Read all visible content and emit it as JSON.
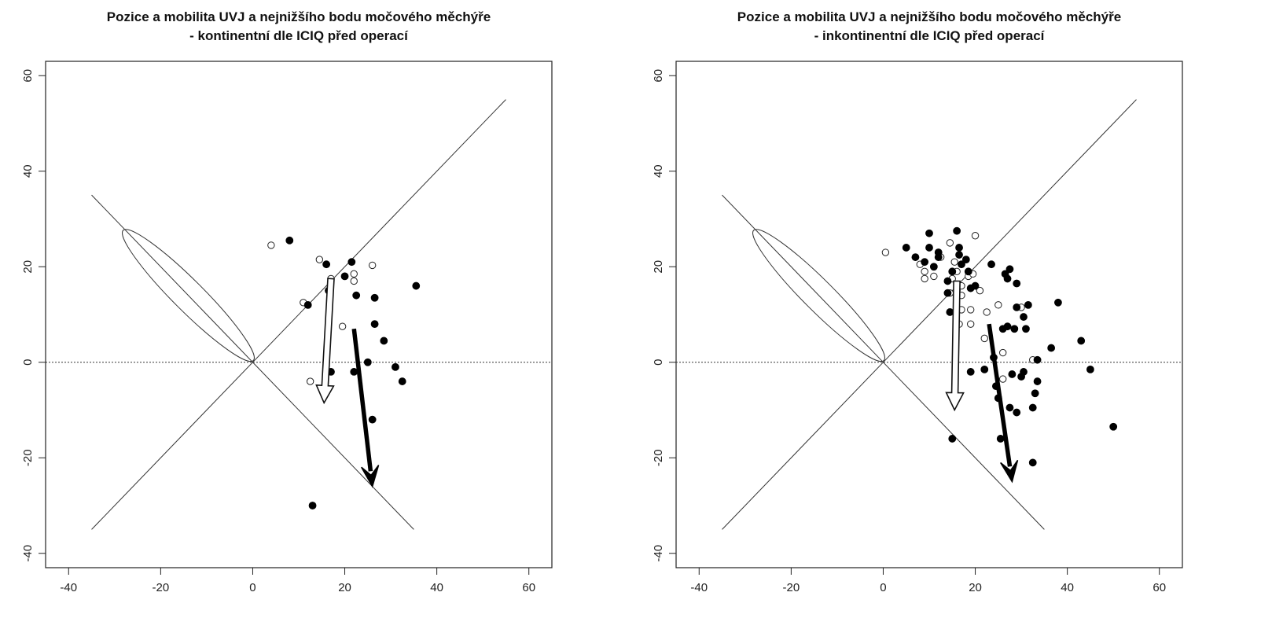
{
  "chart_data": [
    {
      "type": "scatter",
      "title_line1": "Pozice a mobilita UVJ a nejnižšího bodu močového měchýře",
      "title_line2": "- kontinentní dle ICIQ před operací",
      "xlabel": "",
      "ylabel": "",
      "xlim": [
        -45,
        65
      ],
      "ylim": [
        -43,
        63
      ],
      "xticks": [
        -40,
        -20,
        0,
        20,
        40,
        60
      ],
      "yticks": [
        -40,
        -20,
        0,
        20,
        40,
        60
      ],
      "grid": false,
      "reference_lines": [
        {
          "x": [
            -35,
            55
          ],
          "y": [
            -35,
            55
          ],
          "style": "solid"
        },
        {
          "x": [
            -35,
            35
          ],
          "y": [
            35,
            -35
          ],
          "style": "solid"
        },
        {
          "x": [
            -45,
            65
          ],
          "y": [
            0,
            0
          ],
          "style": "dotted"
        }
      ],
      "ellipse": {
        "center": [
          -14,
          14
        ],
        "semi_major": 20,
        "semi_minor": 3.2,
        "angle_deg": -45
      },
      "series": [
        {
          "marker": "open",
          "points": [
            [
              4,
              24.5
            ],
            [
              14.5,
              21.5
            ],
            [
              17,
              17.5
            ],
            [
              11,
              12.5
            ],
            [
              22,
              18.5
            ],
            [
              22,
              17
            ],
            [
              26,
              20.3
            ],
            [
              19.5,
              7.5
            ],
            [
              12.5,
              -4
            ]
          ]
        },
        {
          "marker": "filled",
          "points": [
            [
              8,
              25.5
            ],
            [
              16,
              20.5
            ],
            [
              21.5,
              21
            ],
            [
              20,
              18
            ],
            [
              16.5,
              15
            ],
            [
              12,
              12
            ],
            [
              22.5,
              14
            ],
            [
              26.5,
              13.5
            ],
            [
              35.5,
              16
            ],
            [
              26.5,
              8
            ],
            [
              28.5,
              4.5
            ],
            [
              25,
              0
            ],
            [
              31,
              -1
            ],
            [
              32.5,
              -4
            ],
            [
              22,
              -2
            ],
            [
              17,
              -2
            ],
            [
              26,
              -12
            ],
            [
              13,
              -30
            ]
          ]
        }
      ],
      "arrows": [
        {
          "style": "open",
          "from": [
            17,
            17.5
          ],
          "to": [
            15.5,
            -8.5
          ]
        },
        {
          "style": "filled",
          "from": [
            22,
            7
          ],
          "to": [
            26,
            -26
          ]
        }
      ]
    },
    {
      "type": "scatter",
      "title_line1": "Pozice a mobilita UVJ a nejnižšího bodu močového měchýře",
      "title_line2": "- inkontinentní dle ICIQ před operací",
      "xlabel": "",
      "ylabel": "",
      "xlim": [
        -45,
        65
      ],
      "ylim": [
        -43,
        63
      ],
      "xticks": [
        -40,
        -20,
        0,
        20,
        40,
        60
      ],
      "yticks": [
        -40,
        -20,
        0,
        20,
        40,
        60
      ],
      "grid": false,
      "reference_lines": [
        {
          "x": [
            -35,
            55
          ],
          "y": [
            -35,
            55
          ],
          "style": "solid"
        },
        {
          "x": [
            -35,
            35
          ],
          "y": [
            35,
            -35
          ],
          "style": "solid"
        },
        {
          "x": [
            -45,
            65
          ],
          "y": [
            0,
            0
          ],
          "style": "dotted"
        }
      ],
      "ellipse": {
        "center": [
          -14,
          14
        ],
        "semi_major": 20,
        "semi_minor": 3.2,
        "angle_deg": -45
      },
      "series": [
        {
          "marker": "open",
          "points": [
            [
              0.5,
              23
            ],
            [
              8,
              20.5
            ],
            [
              9,
              19
            ],
            [
              11,
              18
            ],
            [
              9,
              17.5
            ],
            [
              12.5,
              22
            ],
            [
              14.5,
              25
            ],
            [
              15.5,
              21
            ],
            [
              16,
              19
            ],
            [
              15,
              17.5
            ],
            [
              17,
              16
            ],
            [
              18.5,
              18
            ],
            [
              19.5,
              18.5
            ],
            [
              20,
              26.5
            ],
            [
              21,
              15
            ],
            [
              16,
              15
            ],
            [
              17,
              14
            ],
            [
              17,
              11
            ],
            [
              19,
              11
            ],
            [
              16.5,
              8
            ],
            [
              19,
              8
            ],
            [
              25,
              12
            ],
            [
              22.5,
              10.5
            ],
            [
              30,
              11.5
            ],
            [
              22,
              5
            ],
            [
              26,
              2
            ],
            [
              32.5,
              0.5
            ],
            [
              26,
              -3.5
            ],
            [
              14.5,
              14.5
            ]
          ]
        },
        {
          "marker": "filled",
          "points": [
            [
              5,
              24
            ],
            [
              7,
              22
            ],
            [
              10,
              27
            ],
            [
              10,
              24
            ],
            [
              12,
              23
            ],
            [
              12,
              22
            ],
            [
              9,
              21
            ],
            [
              11,
              20
            ],
            [
              14,
              17
            ],
            [
              15,
              19
            ],
            [
              16,
              27.5
            ],
            [
              16.5,
              24
            ],
            [
              16.5,
              22.5
            ],
            [
              17,
              20.5
            ],
            [
              18,
              21.5
            ],
            [
              19,
              15.5
            ],
            [
              20,
              16
            ],
            [
              18.5,
              19
            ],
            [
              14,
              14.5
            ],
            [
              14.5,
              10.5
            ],
            [
              23.5,
              20.5
            ],
            [
              26.5,
              18.5
            ],
            [
              27.5,
              19.5
            ],
            [
              27,
              17.5
            ],
            [
              29,
              16.5
            ],
            [
              31.5,
              12
            ],
            [
              29,
              11.5
            ],
            [
              30.5,
              9.5
            ],
            [
              31,
              7
            ],
            [
              28.5,
              7
            ],
            [
              27,
              7.5
            ],
            [
              26,
              7
            ],
            [
              38,
              12.5
            ],
            [
              43,
              4.5
            ],
            [
              45,
              -1.5
            ],
            [
              36.5,
              3
            ],
            [
              33.5,
              0.5
            ],
            [
              33.5,
              -4
            ],
            [
              33,
              -6.5
            ],
            [
              32.5,
              -9.5
            ],
            [
              24,
              1
            ],
            [
              22,
              -1.5
            ],
            [
              19,
              -2
            ],
            [
              24.5,
              -5
            ],
            [
              25,
              -7.5
            ],
            [
              28,
              -2.5
            ],
            [
              30,
              -3
            ],
            [
              30.5,
              -2
            ],
            [
              27.5,
              -9.5
            ],
            [
              29,
              -10.5
            ],
            [
              25.5,
              -16
            ],
            [
              15,
              -16
            ],
            [
              32.5,
              -21
            ],
            [
              50,
              -13.5
            ]
          ]
        }
      ],
      "arrows": [
        {
          "style": "open",
          "from": [
            16,
            17
          ],
          "to": [
            15.5,
            -10
          ]
        },
        {
          "style": "filled",
          "from": [
            23,
            8
          ],
          "to": [
            28,
            -25
          ]
        }
      ]
    }
  ]
}
